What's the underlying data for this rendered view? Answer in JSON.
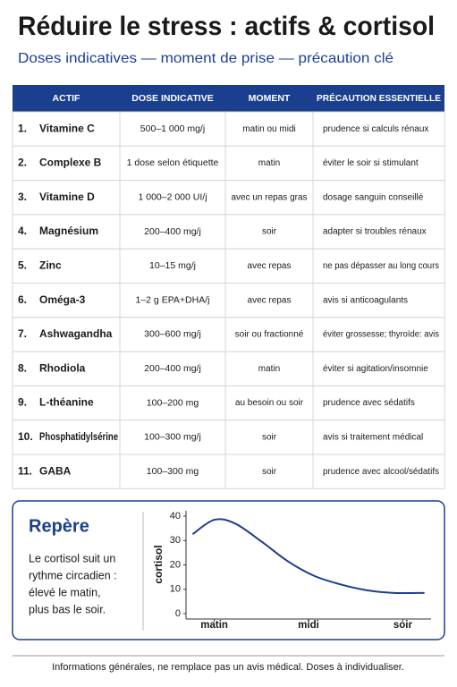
{
  "header": {
    "title": "Réduire le stress : actifs & cortisol",
    "subtitle": "Doses indicatives — moment de prise — précaution clé"
  },
  "table": {
    "columns": [
      "ACTIF",
      "DOSE INDICATIVE",
      "MOMENT",
      "PRÉCAUTION ESSENTIELLE"
    ],
    "rows": [
      [
        "1.",
        "Vitamine C",
        "500–1 000 mg/j",
        "matin ou midi",
        "prudence si calculs rénaux"
      ],
      [
        "2.",
        "Complexe B",
        "1 dose selon étiquette",
        "matin",
        "éviter le soir si stimulant"
      ],
      [
        "3.",
        "Vitamine D",
        "1 000–2 000 UI/j",
        "avec un repas gras",
        "dosage sanguin conseillé"
      ],
      [
        "4.",
        "Magnésium",
        "200–400 mg/j",
        "soir",
        "adapter si troubles rénaux"
      ],
      [
        "5.",
        "Zinc",
        "10–15 mg/j",
        "avec repas",
        "ne pas dépasser au long cours"
      ],
      [
        "6.",
        "Oméga-3",
        "1–2 g EPA+DHA/j",
        "avec repas",
        "avis si anticoagulants"
      ],
      [
        "7.",
        "Ashwagandha",
        "300–600 mg/j",
        "soir ou fractionné",
        "éviter grossesse; thyroïde: avis"
      ],
      [
        "8.",
        "Rhodiola",
        "200–400 mg/j",
        "matin",
        "éviter si agitation/insomnie"
      ],
      [
        "9.",
        "L-théanine",
        "100–200 mg",
        "au besoin ou soir",
        "prudence avec sédatifs"
      ],
      [
        "10.",
        "Phosphatidylsérine",
        "100–300 mg/j",
        "soir",
        "avis si traitement médical"
      ],
      [
        "11.",
        "GABA",
        "100–300 mg",
        "soir",
        "prudence avec alcool/sédatifs"
      ]
    ]
  },
  "note": {
    "title": "Repère",
    "lines": [
      "Le cortisol suit un",
      "rythme circadien :",
      "élevé le matin,",
      "plus bas le soir."
    ]
  },
  "chart_data": {
    "type": "line",
    "ylabel": "cortisol",
    "x": [
      -0.23,
      0,
      0.22,
      0.5,
      0.78,
      1.06,
      1.34,
      1.62,
      1.91,
      2.23
    ],
    "series": [
      {
        "color": "#1b3f8f",
        "values": [
          32.6,
          38.5,
          37,
          29.6,
          21.5,
          15.5,
          12,
          9.6,
          8.5,
          8.5
        ]
      }
    ],
    "xlim": [
      -0.3,
      2.3
    ],
    "xticks": [
      {
        "value": 0,
        "label": "matin"
      },
      {
        "value": 1,
        "label": "midi"
      },
      {
        "value": 2,
        "label": "soir"
      }
    ],
    "ylim": [
      0,
      40
    ],
    "yticks": [
      0,
      10,
      20,
      30,
      40
    ]
  },
  "footer": "Informations générales, ne remplace pas un avis médical. Doses à individualiser."
}
